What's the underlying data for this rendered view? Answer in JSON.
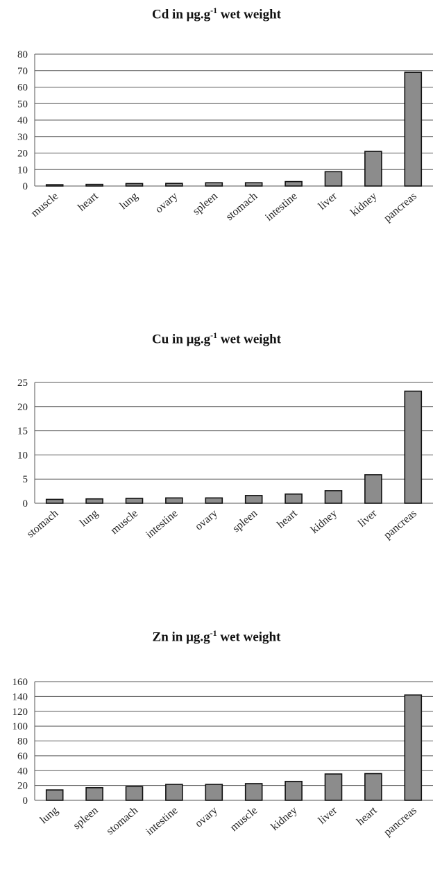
{
  "chart_data": [
    {
      "type": "bar",
      "title_main": "Cd in μg.g",
      "title_sup": "-1",
      "title_tail": " wet weight",
      "categories": [
        "muscle",
        "heart",
        "lung",
        "ovary",
        "spleen",
        "stomach",
        "intestine",
        "liver",
        "kidney",
        "pancreas"
      ],
      "values": [
        0.8,
        1.0,
        1.5,
        1.6,
        2.0,
        2.0,
        2.7,
        8.7,
        21.0,
        69.0
      ],
      "yticks": [
        0,
        10,
        20,
        30,
        40,
        50,
        60,
        70,
        80
      ],
      "ylim": [
        0,
        80
      ],
      "grid": true,
      "bar_color": "#8c8c8c"
    },
    {
      "type": "bar",
      "title_main": "Cu in μg.g",
      "title_sup": "-1",
      "title_tail": " wet weight",
      "categories": [
        "stomach",
        "lung",
        "muscle",
        "intestine",
        "ovary",
        "spleen",
        "heart",
        "kidney",
        "liver",
        "pancreas"
      ],
      "values": [
        0.8,
        0.9,
        1.0,
        1.1,
        1.1,
        1.6,
        1.9,
        2.6,
        5.9,
        23.2
      ],
      "yticks": [
        0,
        5,
        10,
        15,
        20,
        25
      ],
      "ylim": [
        0,
        25
      ],
      "grid": true,
      "bar_color": "#8c8c8c"
    },
    {
      "type": "bar",
      "title_main": "Zn in μg.g",
      "title_sup": "-1",
      "title_tail": " wet weight",
      "categories": [
        "lung",
        "spleen",
        "stomach",
        "intestine",
        "ovary",
        "muscle",
        "kidney",
        "liver",
        "heart",
        "pancreas"
      ],
      "values": [
        14,
        17,
        18.5,
        21.5,
        21.5,
        22.5,
        25.5,
        35.5,
        36,
        142
      ],
      "yticks": [
        0,
        20,
        40,
        60,
        80,
        100,
        120,
        140,
        160
      ],
      "ylim": [
        0,
        160
      ],
      "grid": true,
      "bar_color": "#8c8c8c"
    }
  ]
}
